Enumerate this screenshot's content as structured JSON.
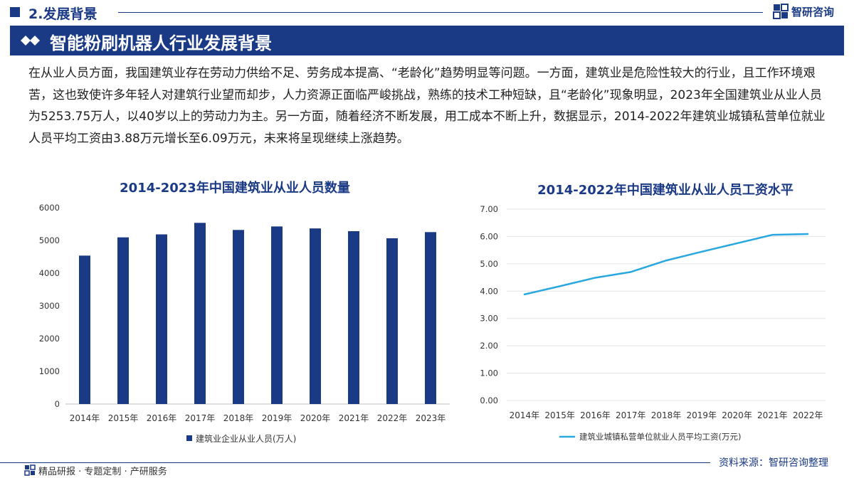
{
  "header": {
    "section_title": "2.发展背景",
    "brand_name": "智研咨询"
  },
  "banner": {
    "title": "智能粉刷机器人行业发展背景"
  },
  "paragraph": "在从业人员方面，我国建筑业存在劳动力供给不足、劳务成本提高、“老龄化”趋势明显等问题。一方面，建筑业是危险性较大的行业，且工作环境艰苦，这也致使许多年轻人对建筑行业望而却步，人力资源正面临严峻挑战，熟练的技术工种短缺，且“老龄化”现象明显，2023年全国建筑业从业人员为5253.75万人，以40岁以上的劳动力为主。另一方面，随着经济不断发展，用工成本不断上升，数据显示，2014-2022年建筑业城镇私营单位就业人员平均工资由3.88万元增长至6.09万元，未来将呈现继续上涨趋势。",
  "chart_data": [
    {
      "type": "bar",
      "title": "2014-2023年中国建筑业从业人员数量",
      "categories": [
        "2014年",
        "2015年",
        "2016年",
        "2017年",
        "2018年",
        "2019年",
        "2020年",
        "2021年",
        "2022年",
        "2023年"
      ],
      "series": [
        {
          "name": "建筑业企业从业人员(万人)",
          "values": [
            4536,
            5094,
            5185,
            5537,
            5320,
            5427,
            5367,
            5283,
            5066,
            5254
          ],
          "color": "#1a3a86"
        }
      ],
      "yticks": [
        "0",
        "1000",
        "2000",
        "3000",
        "4000",
        "5000",
        "6000"
      ],
      "ylim": [
        0,
        6000
      ],
      "grid": false,
      "legend": "bottom"
    },
    {
      "type": "line",
      "title": "2014-2022年中国建筑业从业人员工资水平",
      "categories": [
        "2014年",
        "2015年",
        "2016年",
        "2017年",
        "2018年",
        "2019年",
        "2020年",
        "2021年",
        "2022年"
      ],
      "series": [
        {
          "name": "建筑业城镇私营单位就业人员平均工资(万元)",
          "values": [
            3.88,
            4.18,
            4.49,
            4.7,
            5.12,
            5.44,
            5.75,
            6.06,
            6.09
          ],
          "color": "#29a8e0"
        }
      ],
      "yticks": [
        "0.00",
        "1.00",
        "2.00",
        "3.00",
        "4.00",
        "5.00",
        "6.00",
        "7.00"
      ],
      "ylim": [
        0,
        7
      ],
      "grid": true,
      "legend": "bottom"
    }
  ],
  "footer": {
    "source": "资料来源：智研咨询整理",
    "slogan": "精品研报 · 专题定制 · 产研服务"
  }
}
